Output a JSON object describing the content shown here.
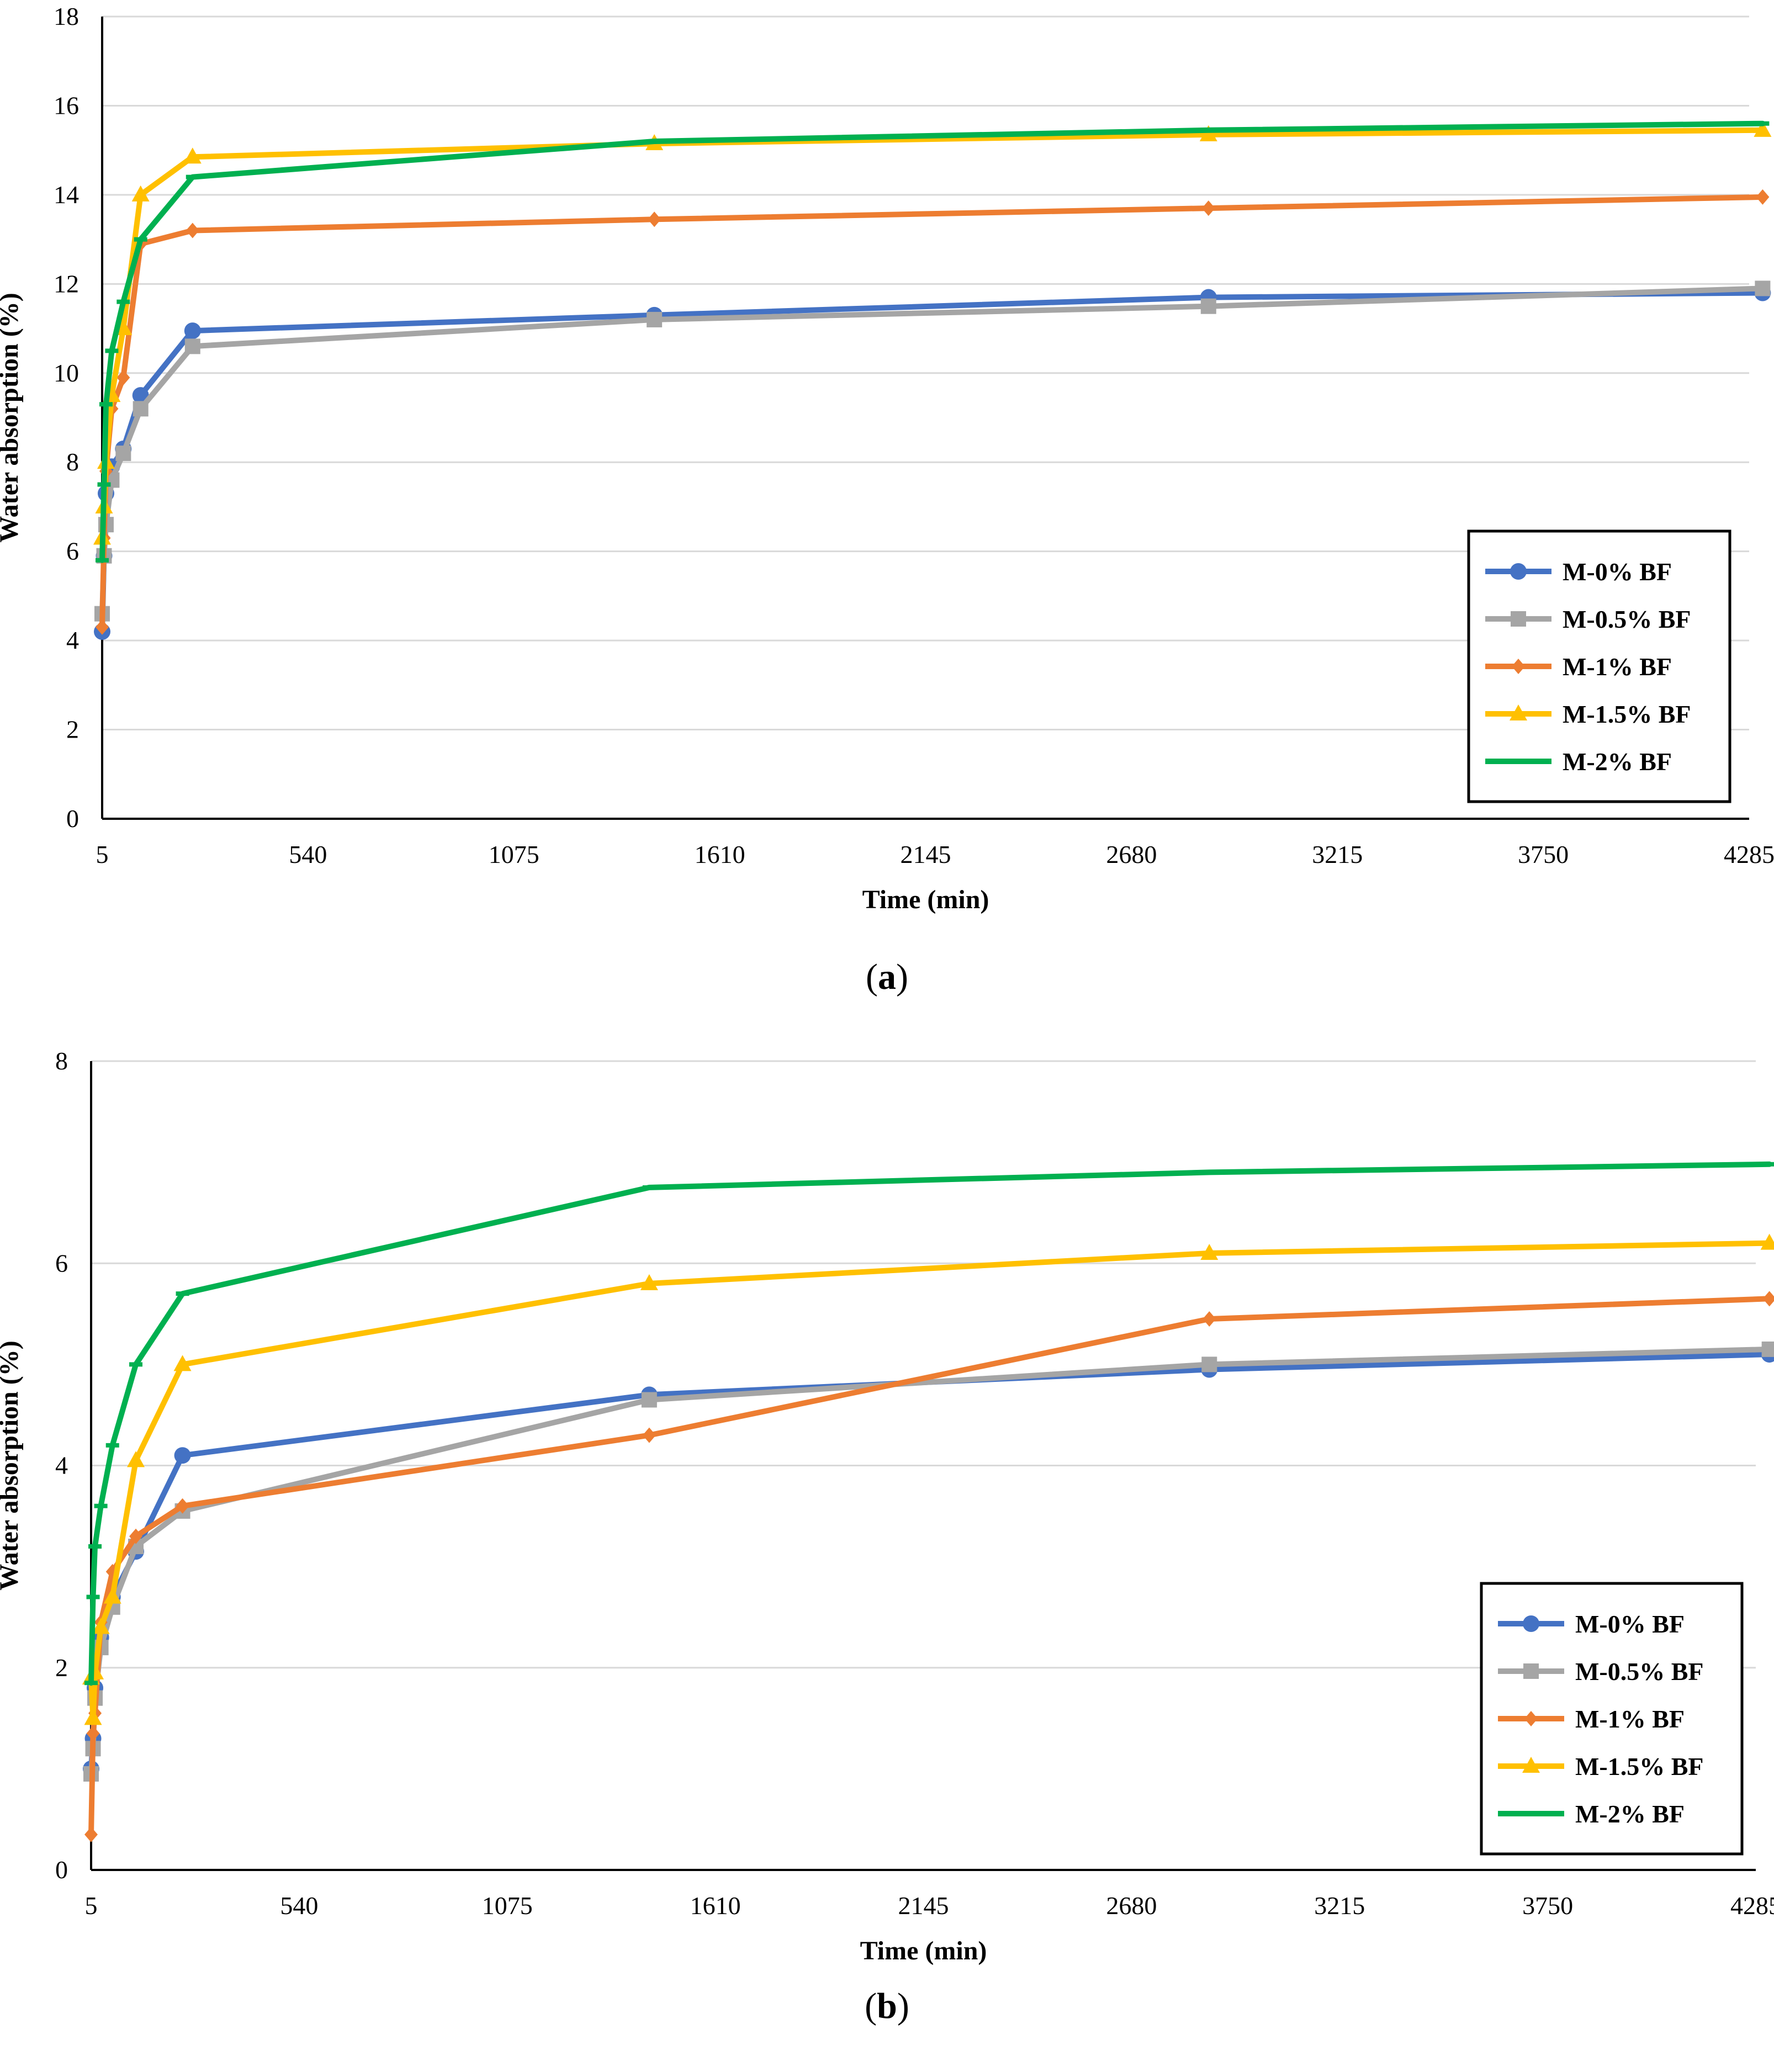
{
  "chart_data": [
    {
      "type": "line",
      "caption_letter": "a",
      "xlabel": "Time (min)",
      "ylabel": "Water absorption (%)",
      "xlim": [
        5,
        4285
      ],
      "ylim": [
        0,
        18
      ],
      "xticks": [
        "5",
        "540",
        "1075",
        "1610",
        "2145",
        "2680",
        "3215",
        "3750",
        "4285"
      ],
      "yticks": [
        "0",
        "2",
        "4",
        "6",
        "8",
        "10",
        "12",
        "14",
        "16",
        "18"
      ],
      "grid": "horizontal",
      "legend_position": "bottom-right",
      "series": [
        {
          "name": "M-0% BF",
          "color": "#4472C4",
          "marker": "circle",
          "x": [
            5,
            10,
            15,
            30,
            60,
            105,
            240,
            1440,
            2880,
            4320
          ],
          "y": [
            4.2,
            5.9,
            7.3,
            7.9,
            8.3,
            9.5,
            10.95,
            11.3,
            11.7,
            11.8
          ]
        },
        {
          "name": "M-0.5% BF",
          "color": "#A5A5A5",
          "marker": "square",
          "x": [
            5,
            10,
            15,
            30,
            60,
            105,
            240,
            1440,
            2880,
            4320
          ],
          "y": [
            4.6,
            5.9,
            6.6,
            7.6,
            8.2,
            9.2,
            10.6,
            11.2,
            11.5,
            11.9
          ]
        },
        {
          "name": "M-1% BF",
          "color": "#ED7D31",
          "marker": "diamond",
          "x": [
            5,
            10,
            15,
            30,
            60,
            105,
            240,
            1440,
            2880,
            4320
          ],
          "y": [
            4.3,
            6.3,
            7.8,
            9.2,
            9.9,
            12.9,
            13.2,
            13.45,
            13.7,
            13.95
          ]
        },
        {
          "name": "M-1.5% BF",
          "color": "#FFC000",
          "marker": "triangle",
          "x": [
            5,
            10,
            15,
            30,
            60,
            105,
            240,
            1440,
            2880,
            4320
          ],
          "y": [
            6.3,
            7.0,
            8.0,
            9.5,
            11.0,
            14.0,
            14.85,
            15.15,
            15.35,
            15.45
          ]
        },
        {
          "name": "M-2% BF",
          "color": "#00B050",
          "marker": "line",
          "x": [
            5,
            10,
            15,
            30,
            60,
            105,
            240,
            1440,
            2880,
            4320
          ],
          "y": [
            5.8,
            7.5,
            9.3,
            10.5,
            11.6,
            13.0,
            14.4,
            15.2,
            15.45,
            15.6
          ]
        }
      ]
    },
    {
      "type": "line",
      "caption_letter": "b",
      "xlabel": "Time (min)",
      "ylabel": "Water absorption (%)",
      "xlim": [
        5,
        4285
      ],
      "ylim": [
        0,
        8
      ],
      "xticks": [
        "5",
        "540",
        "1075",
        "1610",
        "2145",
        "2680",
        "3215",
        "3750",
        "4285"
      ],
      "yticks": [
        "0",
        "2",
        "4",
        "6",
        "8"
      ],
      "grid": "horizontal",
      "legend_position": "bottom-right",
      "series": [
        {
          "name": "M-0% BF",
          "color": "#4472C4",
          "marker": "circle",
          "x": [
            5,
            10,
            15,
            30,
            60,
            120,
            240,
            1440,
            2880,
            4320
          ],
          "y": [
            1.0,
            1.3,
            1.8,
            2.3,
            2.7,
            3.15,
            4.1,
            4.7,
            4.95,
            5.1
          ]
        },
        {
          "name": "M-0.5% BF",
          "color": "#A5A5A5",
          "marker": "square",
          "x": [
            5,
            10,
            15,
            30,
            60,
            120,
            240,
            1440,
            2880,
            4320
          ],
          "y": [
            0.95,
            1.2,
            1.7,
            2.2,
            2.6,
            3.2,
            3.55,
            4.65,
            5.0,
            5.15
          ]
        },
        {
          "name": "M-1% BF",
          "color": "#ED7D31",
          "marker": "diamond",
          "x": [
            5,
            10,
            15,
            30,
            60,
            120,
            240,
            1440,
            2880,
            4320
          ],
          "y": [
            0.35,
            1.35,
            1.55,
            2.45,
            2.95,
            3.3,
            3.6,
            4.3,
            5.45,
            5.65
          ]
        },
        {
          "name": "M-1.5% BF",
          "color": "#FFC000",
          "marker": "triangle",
          "x": [
            5,
            10,
            15,
            30,
            60,
            120,
            240,
            1440,
            2880,
            4320
          ],
          "y": [
            1.9,
            1.5,
            1.95,
            2.4,
            2.7,
            4.05,
            5.0,
            5.8,
            6.1,
            6.2
          ]
        },
        {
          "name": "M-2% BF",
          "color": "#00B050",
          "marker": "line",
          "x": [
            5,
            10,
            15,
            30,
            60,
            120,
            240,
            1440,
            2880,
            4320
          ],
          "y": [
            1.85,
            2.7,
            3.2,
            3.6,
            4.2,
            5.0,
            5.7,
            6.75,
            6.9,
            6.98
          ]
        }
      ]
    }
  ]
}
